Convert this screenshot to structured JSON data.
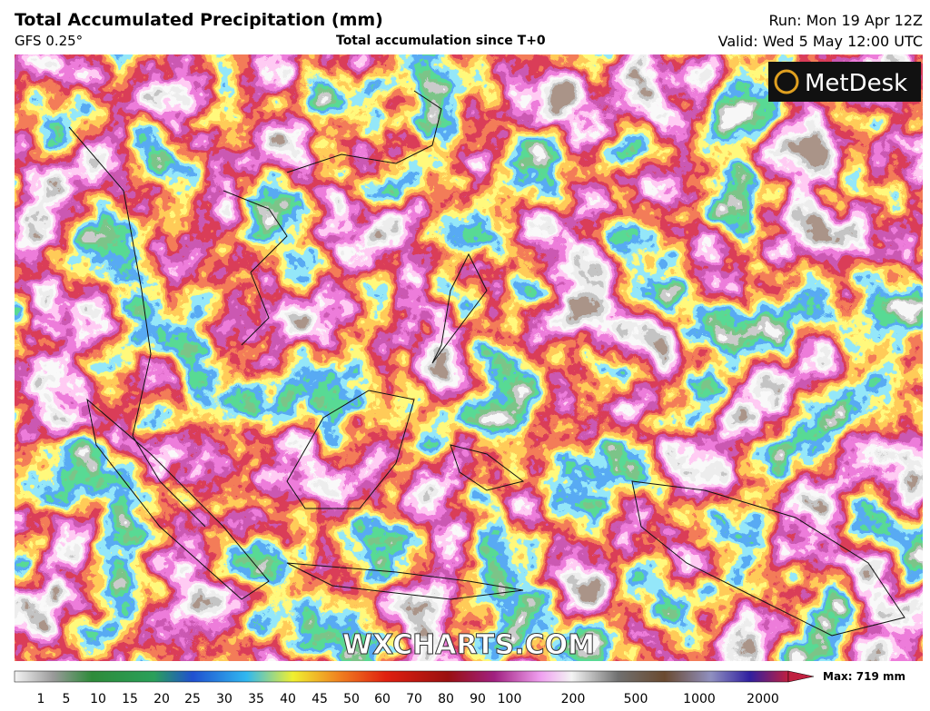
{
  "header": {
    "title": "Total Accumulated Precipitation (mm)",
    "model": "GFS 0.25°",
    "subtitle": "Total accumulation since T+0",
    "run": "Run: Mon 19 Apr 12Z",
    "valid": "Valid: Wed 5 May 12:00 UTC"
  },
  "map": {
    "logo": "MetDesk",
    "watermark": "WXCHARTS.COM"
  },
  "legend": {
    "ticks": [
      "1",
      "5",
      "10",
      "15",
      "20",
      "25",
      "30",
      "35",
      "40",
      "45",
      "50",
      "60",
      "70",
      "80",
      "90",
      "100",
      "200",
      "500",
      "1000",
      "2000"
    ],
    "max": "Max: 719 mm"
  }
}
